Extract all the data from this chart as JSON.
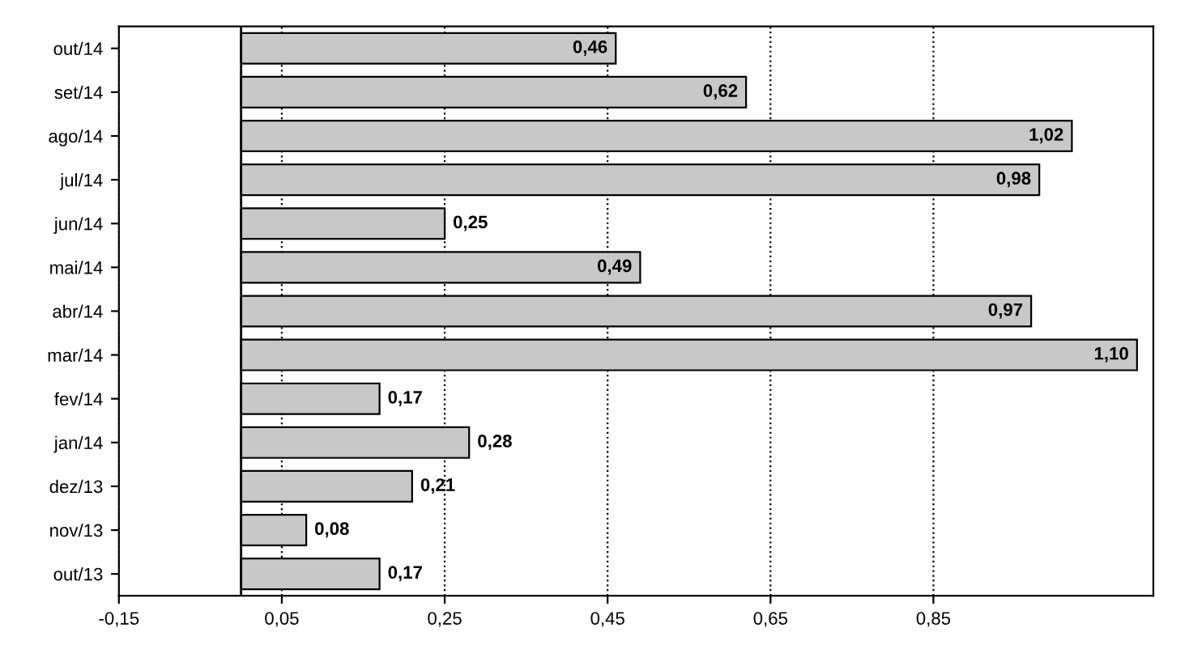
{
  "chart_data": {
    "type": "bar",
    "orientation": "horizontal",
    "categories": [
      "out/14",
      "set/14",
      "ago/14",
      "jul/14",
      "jun/14",
      "mai/14",
      "abr/14",
      "mar/14",
      "fev/14",
      "jan/14",
      "dez/13",
      "nov/13",
      "out/13"
    ],
    "values": [
      0.46,
      0.62,
      1.02,
      0.98,
      0.25,
      0.49,
      0.97,
      1.1,
      0.17,
      0.28,
      0.21,
      0.08,
      0.17
    ],
    "value_labels": [
      "0,46",
      "0,62",
      "1,02",
      "0,98",
      "0,25",
      "0,49",
      "0,97",
      "1,10",
      "0,17",
      "0,28",
      "0,21",
      "0,08",
      "0,17"
    ],
    "color": "#c8c8c8",
    "xlim": [
      -0.15,
      1.12
    ],
    "xticks": [
      {
        "value": -0.15,
        "label": "-0,15"
      },
      {
        "value": 0.05,
        "label": "0,05"
      },
      {
        "value": 0.25,
        "label": "0,25"
      },
      {
        "value": 0.45,
        "label": "0,45"
      },
      {
        "value": 0.65,
        "label": "0,65"
      },
      {
        "value": 0.85,
        "label": "0,85"
      }
    ],
    "grid": "x"
  }
}
